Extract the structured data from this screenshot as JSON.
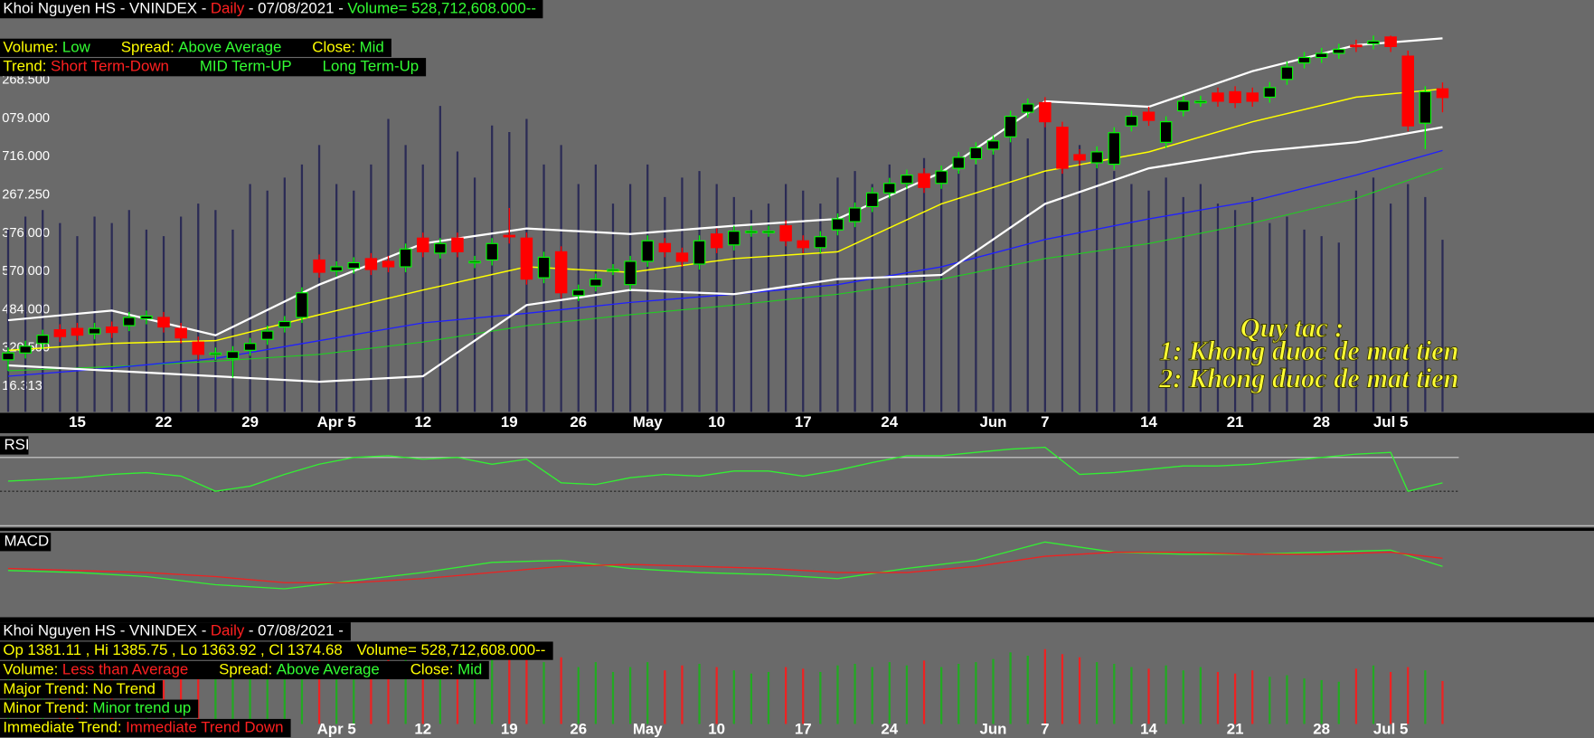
{
  "header": {
    "name": "Khoi Nguyen HS - VNINDEX -",
    "period": "Daily",
    "date": "- 07/08/2021 -",
    "volume": "Volume= 528,712,608.000--"
  },
  "main_info": {
    "volume_label": "Volume:",
    "volume": "Low",
    "spread_label": "Spread:",
    "spread": "Above Average",
    "close_label": "Close:",
    "close": "Mid",
    "trend_label": "Trend:",
    "short": "Short Term-Down",
    "mid": "MID Term-UP",
    "long": "Long Term-Up"
  },
  "bottom_info": {
    "ohlc_labels": [
      "Op",
      ", Hi",
      ", Lo",
      ", Cl"
    ],
    "volume_value": "Less than Average",
    "major_label": "Major Trend:",
    "major": "No Trend",
    "minor_label": "Minor Trend:",
    "minor": "Minor trend up",
    "immediate_label": "Immediate Trend:",
    "immediate": "Immediate Trend Down"
  },
  "annotation": [
    "Quy tac :",
    "1: Khong duoc de mat tien",
    "2: Khong duoc de mat tien"
  ],
  "chart_data": [
    {
      "type": "candlestick",
      "categories": [
        null,
        null,
        null,
        null,
        "15",
        null,
        null,
        null,
        null,
        "22",
        null,
        null,
        null,
        null,
        "29",
        null,
        null,
        null,
        null,
        "Apr 5",
        null,
        null,
        null,
        null,
        "12",
        null,
        null,
        null,
        null,
        "19",
        null,
        null,
        null,
        "26",
        null,
        null,
        null,
        "May",
        null,
        null,
        null,
        "10",
        null,
        null,
        null,
        null,
        "17",
        null,
        null,
        null,
        null,
        "24",
        null,
        null,
        null,
        null,
        null,
        "Jun",
        null,
        null,
        "7",
        null,
        null,
        null,
        null,
        null,
        "14",
        null,
        null,
        null,
        null,
        "21",
        null,
        null,
        null,
        null,
        "28",
        null,
        null,
        null,
        "Jul 5",
        null,
        null,
        null
      ],
      "open": [
        1183,
        1188,
        1195,
        1205,
        1206,
        1202,
        1207,
        1208,
        1213,
        1214,
        1206,
        1196,
        1187,
        1184,
        1190,
        1198,
        1207,
        1214,
        1256,
        1248,
        1250,
        1257,
        1255,
        1251,
        1272,
        1261,
        1272,
        1254,
        1256,
        1274,
        1272,
        1243,
        1262,
        1230,
        1237,
        1249,
        1238,
        1255,
        1268,
        1261,
        1253,
        1275,
        1267,
        1277,
        1277,
        1281,
        1270,
        1265,
        1278,
        1284,
        1295,
        1305,
        1312,
        1319,
        1312,
        1323,
        1330,
        1337,
        1346,
        1364,
        1371,
        1353,
        1333,
        1327,
        1326,
        1354,
        1364,
        1342,
        1365,
        1372,
        1378,
        1379,
        1378,
        1375,
        1388,
        1400,
        1404,
        1407,
        1413,
        1414,
        1419,
        1405,
        1356,
        1381.11
      ],
      "high": [
        1192,
        1197,
        1205,
        1209,
        1210,
        1210,
        1211,
        1218,
        1219,
        1218,
        1210,
        1200,
        1192,
        1193,
        1199,
        1208,
        1215,
        1236,
        1260,
        1255,
        1258,
        1261,
        1259,
        1268,
        1276,
        1272,
        1276,
        1259,
        1272,
        1294,
        1276,
        1262,
        1266,
        1238,
        1246,
        1253,
        1259,
        1274,
        1272,
        1265,
        1274,
        1279,
        1281,
        1281,
        1281,
        1285,
        1274,
        1277,
        1290,
        1298,
        1309,
        1316,
        1322,
        1323,
        1325,
        1335,
        1342,
        1347,
        1365,
        1374,
        1375,
        1357,
        1337,
        1339,
        1353,
        1365,
        1368,
        1361,
        1376,
        1376,
        1382,
        1383,
        1382,
        1386,
        1401,
        1408,
        1411,
        1414,
        1417,
        1420,
        1420,
        1409,
        1383,
        1385.75
      ],
      "low": [
        1175,
        1184,
        1191,
        1196,
        1197,
        1198,
        1199,
        1204,
        1209,
        1203,
        1195,
        1183,
        1183,
        1170,
        1186,
        1194,
        1203,
        1210,
        1243,
        1244,
        1246,
        1245,
        1247,
        1247,
        1258,
        1257,
        1258,
        1250,
        1252,
        1268,
        1238,
        1239,
        1228,
        1226,
        1233,
        1245,
        1234,
        1251,
        1258,
        1251,
        1249,
        1261,
        1263,
        1273,
        1273,
        1266,
        1261,
        1261,
        1274,
        1280,
        1291,
        1301,
        1308,
        1305,
        1308,
        1319,
        1326,
        1333,
        1342,
        1360,
        1353,
        1319,
        1325,
        1323,
        1322,
        1350,
        1354,
        1338,
        1361,
        1368,
        1368,
        1367,
        1368,
        1371,
        1384,
        1396,
        1400,
        1403,
        1408,
        1410,
        1408,
        1350,
        1337,
        1363.92
      ],
      "close": [
        1188,
        1193,
        1201,
        1200,
        1201,
        1206,
        1203,
        1214,
        1215,
        1207,
        1199,
        1187,
        1188,
        1189,
        1195,
        1204,
        1211,
        1232,
        1247,
        1251,
        1254,
        1249,
        1251,
        1264,
        1262,
        1268,
        1262,
        1255,
        1268,
        1273,
        1242,
        1258,
        1232,
        1234,
        1242,
        1249,
        1255,
        1270,
        1262,
        1255,
        1270,
        1265,
        1277,
        1277,
        1277,
        1270,
        1265,
        1273,
        1286,
        1294,
        1305,
        1312,
        1318,
        1309,
        1321,
        1331,
        1338,
        1343,
        1361,
        1370,
        1357,
        1323,
        1329,
        1335,
        1349,
        1361,
        1358,
        1357,
        1372,
        1372,
        1372,
        1371,
        1372,
        1382,
        1397,
        1404,
        1407,
        1410,
        1412,
        1416,
        1412,
        1354,
        1379,
        1374.68
      ],
      "ylim": [
        1145,
        1446
      ],
      "up_color": "#00ff00",
      "down_color": "#ff0000",
      "price_labels": [
        "268.500",
        "079.000",
        "716.000",
        "267.250",
        "376.000",
        "570.000",
        "484.000",
        "320.500",
        "16.313"
      ],
      "overlays": {
        "x": [
          0,
          6,
          12,
          18,
          24,
          30,
          36,
          42,
          48,
          54,
          60,
          66,
          72,
          78,
          83
        ],
        "series": [
          {
            "color": "#22cc22",
            "width": 1,
            "values": [
              1175,
              1178,
              1182,
              1187,
              1196,
              1208,
              1216,
              1223,
              1231,
              1242,
              1257,
              1268,
              1283,
              1301,
              1323
            ]
          },
          {
            "color": "#2020ff",
            "width": 1.2,
            "values": [
              1171,
              1177,
              1184,
              1197,
              1210,
              1217,
              1225,
              1231,
              1238,
              1251,
              1271,
              1286,
              1299,
              1318,
              1336
            ]
          },
          {
            "color": "#ffff00",
            "width": 1.3,
            "values": [
              1190,
              1195,
              1197,
              1216,
              1234,
              1251,
              1247,
              1257,
              1262,
              1297,
              1321,
              1335,
              1357,
              1375,
              1381
            ]
          },
          {
            "color": "#ffffff",
            "width": 2,
            "values": [
              1212,
              1219,
              1201,
              1238,
              1268,
              1279,
              1275,
              1281,
              1286,
              1320,
              1372,
              1368,
              1394,
              1413,
              1418
            ]
          },
          {
            "color": "#ffffff",
            "width": 2,
            "values": [
              1179,
              1175,
              1171,
              1167,
              1171,
              1223,
              1234,
              1231,
              1242,
              1245,
              1297,
              1323,
              1335,
              1342,
              1353
            ]
          }
        ]
      }
    },
    {
      "type": "line",
      "title": "RSI",
      "color": "#33ee33",
      "ylim": [
        0,
        100
      ],
      "xlim": [
        0,
        83
      ],
      "ref_lines": [
        30,
        70
      ],
      "x": [
        0,
        2,
        4,
        6,
        8,
        10,
        12,
        14,
        16,
        18,
        20,
        22,
        24,
        26,
        28,
        30,
        32,
        34,
        36,
        38,
        40,
        42,
        44,
        46,
        48,
        50,
        52,
        54,
        56,
        58,
        60,
        62,
        64,
        66,
        68,
        70,
        72,
        74,
        76,
        78,
        80,
        81,
        83
      ],
      "values": [
        42,
        44,
        46,
        50,
        52,
        48,
        30,
        36,
        50,
        62,
        70,
        72,
        68,
        70,
        62,
        68,
        40,
        38,
        46,
        50,
        48,
        54,
        54,
        48,
        55,
        64,
        72,
        72,
        76,
        80,
        82,
        50,
        52,
        56,
        60,
        60,
        62,
        66,
        70,
        74,
        76,
        30,
        40
      ]
    },
    {
      "type": "line",
      "title": "MACD",
      "ylim": [
        -15,
        25
      ],
      "xlim": [
        0,
        83
      ],
      "x": [
        0,
        4,
        8,
        12,
        16,
        20,
        24,
        28,
        32,
        36,
        40,
        44,
        48,
        52,
        56,
        60,
        64,
        68,
        72,
        76,
        80,
        83
      ],
      "series": [
        {
          "color": "#33ee33",
          "values": [
            7,
            6,
            4,
            0,
            -2,
            2,
            6,
            11,
            12,
            8,
            6,
            5,
            3,
            8,
            12,
            21,
            16,
            15,
            15,
            16,
            17,
            9
          ]
        },
        {
          "color": "#ee2222",
          "values": [
            8,
            7,
            6,
            4,
            1,
            1,
            3,
            6,
            9,
            10,
            9,
            8,
            6,
            6,
            9,
            14,
            16,
            16,
            15,
            15,
            16,
            13
          ]
        }
      ]
    },
    {
      "type": "bar",
      "ylim": [
        0,
        1000
      ],
      "up_color": "#22aa22",
      "down_color": "#ee2222",
      "main_color": "#2b2b55",
      "values": [
        560,
        600,
        620,
        580,
        540,
        600,
        580,
        620,
        560,
        540,
        600,
        640,
        620,
        560,
        700,
        680,
        720,
        760,
        820,
        700,
        680,
        760,
        900,
        820,
        760,
        940,
        800,
        720,
        880,
        860,
        900,
        760,
        820,
        700,
        760,
        640,
        700,
        760,
        660,
        720,
        740,
        700,
        660,
        620,
        640,
        700,
        680,
        640,
        720,
        740,
        700,
        760,
        720,
        780,
        700,
        740,
        760,
        800,
        880,
        840,
        920,
        860,
        820,
        760,
        740,
        700,
        680,
        720,
        660,
        700,
        640,
        620,
        660,
        580,
        600,
        560,
        540,
        520,
        680,
        720,
        640,
        700,
        660,
        528.712608
      ]
    }
  ]
}
